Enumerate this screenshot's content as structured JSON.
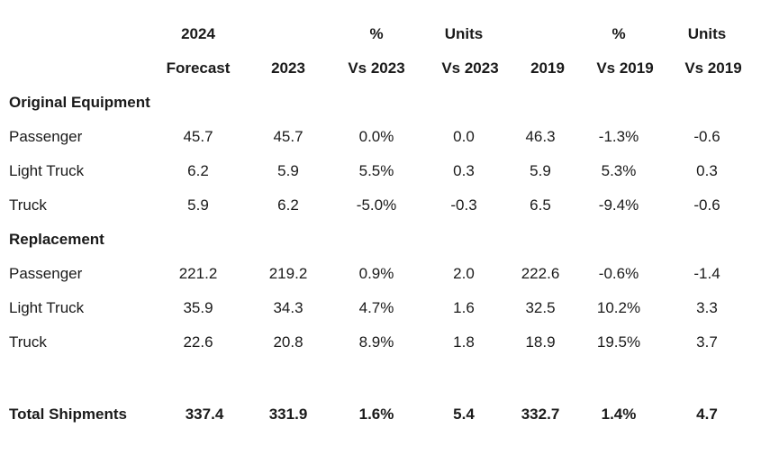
{
  "table": {
    "header_top": [
      "2024",
      "",
      "%",
      "Units",
      "",
      "%",
      "Units"
    ],
    "header_bottom": [
      "Forecast",
      "2023",
      "Vs 2023",
      "Vs 2023",
      "2019",
      "Vs 2019",
      "Vs 2019"
    ],
    "sections": [
      {
        "title": "Original Equipment",
        "rows": [
          {
            "label": "Passenger",
            "values": [
              "45.7",
              "45.7",
              "0.0%",
              "0.0",
              "46.3",
              "-1.3%",
              "-0.6"
            ]
          },
          {
            "label": "Light Truck",
            "values": [
              "6.2",
              "5.9",
              "5.5%",
              "0.3",
              "5.9",
              "5.3%",
              "0.3"
            ]
          },
          {
            "label": "Truck",
            "values": [
              "5.9",
              "6.2",
              "-5.0%",
              "-0.3",
              "6.5",
              "-9.4%",
              "-0.6"
            ]
          }
        ]
      },
      {
        "title": "Replacement",
        "rows": [
          {
            "label": "Passenger",
            "values": [
              "221.2",
              "219.2",
              "0.9%",
              "2.0",
              "222.6",
              "-0.6%",
              "-1.4"
            ]
          },
          {
            "label": "Light Truck",
            "values": [
              "35.9",
              "34.3",
              "4.7%",
              "1.6",
              "32.5",
              "10.2%",
              "3.3"
            ]
          },
          {
            "label": "Truck",
            "values": [
              "22.6",
              "20.8",
              "8.9%",
              "1.8",
              "18.9",
              "19.5%",
              "3.7"
            ]
          }
        ]
      }
    ],
    "total": {
      "label": "Total Shipments",
      "values": [
        "337.4",
        "331.9",
        "1.6%",
        "5.4",
        "332.7",
        "1.4%",
        "4.7"
      ]
    }
  }
}
